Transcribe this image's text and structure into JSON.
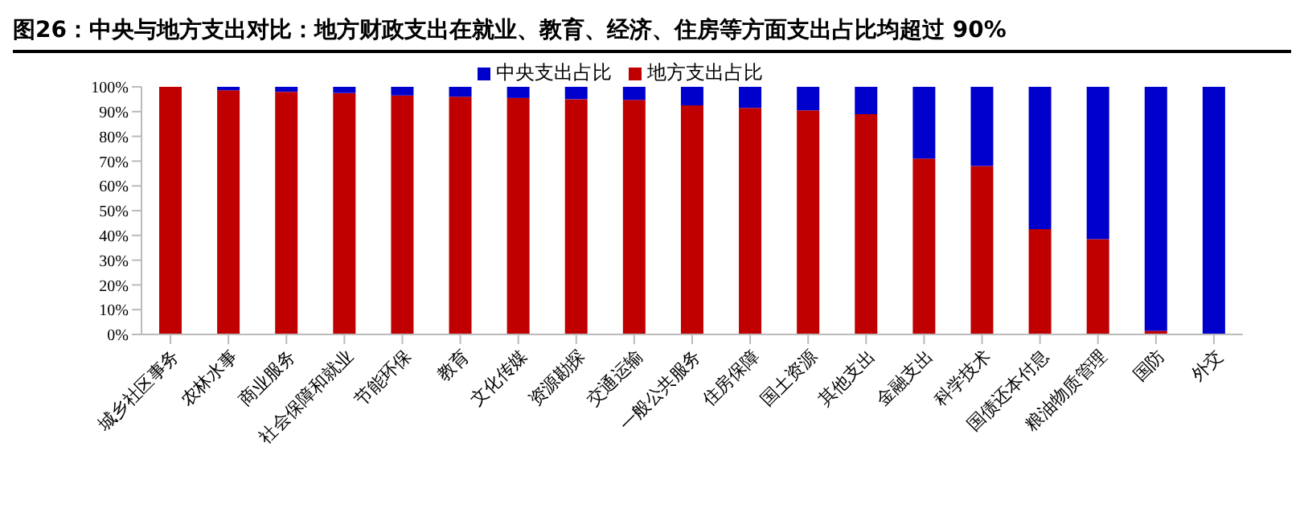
{
  "chart_data": {
    "type": "bar",
    "title": "图26：中央与地方支出对比：地方财政支出在就业、教育、经济、住房等方面支出占比均超过 90%",
    "categories": [
      "城乡社区事务",
      "农林水事",
      "商业服务",
      "社会保障和就业",
      "节能环保",
      "教育",
      "文化传媒",
      "资源勘探",
      "交通运输",
      "一般公共服务",
      "住房保障",
      "国土资源",
      "其他支出",
      "金融支出",
      "科学技术",
      "国债还本付息",
      "粮油物质管理",
      "国防",
      "外交"
    ],
    "stacked": true,
    "legend": "top",
    "series": [
      {
        "name": "地方支出占比",
        "color": "#c00000",
        "values": [
          100,
          98.6,
          98,
          97.5,
          96.5,
          96,
          95.5,
          95,
          94.7,
          92.5,
          91.5,
          90.5,
          89,
          71,
          68,
          42.5,
          38.5,
          1.5,
          0
        ]
      },
      {
        "name": "中央支出占比",
        "color": "#0000cc",
        "values": [
          0,
          1.4,
          2,
          2.5,
          3.5,
          4,
          4.5,
          5,
          5.3,
          7.5,
          8.5,
          9.5,
          11,
          29,
          32,
          57.5,
          61.5,
          98.5,
          100
        ]
      }
    ],
    "ylim": [
      0,
      100
    ],
    "yticks": [
      {
        "value": 0,
        "label": "0%"
      },
      {
        "value": 10,
        "label": "10%"
      },
      {
        "value": 20,
        "label": "20%"
      },
      {
        "value": 30,
        "label": "30%"
      },
      {
        "value": 40,
        "label": "40%"
      },
      {
        "value": 50,
        "label": "50%"
      },
      {
        "value": 60,
        "label": "60%"
      },
      {
        "value": 70,
        "label": "70%"
      },
      {
        "value": 80,
        "label": "80%"
      },
      {
        "value": 90,
        "label": "90%"
      },
      {
        "value": 100,
        "label": "100%"
      }
    ]
  }
}
